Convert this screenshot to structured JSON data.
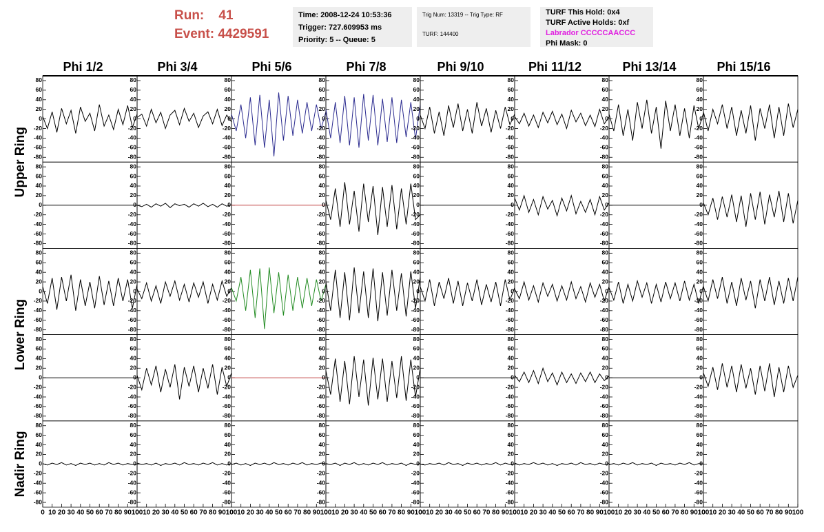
{
  "header": {
    "run_label": "Run:",
    "run": 41,
    "event_label": "Event:",
    "event": 4429591
  },
  "info": [
    [
      "Time: 2008-12-24 10:53:36",
      "Trigger: 727.609953 ms",
      "Priority: 5 -- Queue: 5"
    ],
    [
      "Trig Num: 13319 -- Trig Type: RF",
      "TURF: 144400"
    ],
    [
      "TURF This Hold: 0x4",
      "TURF Active Holds: 0xf",
      "Labrador CCCCCAACCC",
      "Phi Mask: 0"
    ]
  ],
  "chart_data": {
    "type": "line",
    "columns": [
      "Phi 1/2",
      "Phi 3/4",
      "Phi 5/6",
      "Phi 7/8",
      "Phi 9/10",
      "Phi 11/12",
      "Phi 13/14",
      "Phi 15/16"
    ],
    "ring_labels": [
      "Upper Ring",
      "Lower Ring",
      "Nadir Ring"
    ],
    "xlim": [
      0,
      100
    ],
    "ylim": [
      -90,
      90
    ],
    "xticks": [
      0,
      10,
      20,
      30,
      40,
      50,
      60,
      70,
      80,
      90,
      100
    ],
    "yticks": [
      -80,
      -60,
      -40,
      -20,
      0,
      20,
      40,
      60,
      80
    ],
    "x": [
      0,
      5,
      10,
      15,
      20,
      25,
      30,
      35,
      40,
      45,
      50,
      55,
      60,
      65,
      70,
      75,
      80,
      85,
      90,
      95,
      100
    ],
    "panels": [
      [
        {
          "color": "#000000",
          "values": [
            5,
            -20,
            15,
            -28,
            22,
            -10,
            18,
            -30,
            25,
            -5,
            12,
            -25,
            30,
            -15,
            8,
            -22,
            20,
            -12,
            28,
            -18,
            10
          ]
        },
        {
          "color": "#000000",
          "values": [
            3,
            10,
            -15,
            20,
            -8,
            14,
            -20,
            8,
            18,
            -12,
            22,
            -5,
            12,
            -18,
            6,
            15,
            -10,
            20,
            -14,
            8,
            -6
          ]
        },
        {
          "color": "#2b2b8f",
          "values": [
            10,
            -25,
            30,
            -40,
            45,
            -55,
            50,
            -60,
            40,
            -78,
            55,
            -45,
            48,
            -35,
            40,
            -30,
            35,
            -25,
            30,
            -20,
            15
          ]
        },
        {
          "color": "#2b2b8f",
          "values": [
            20,
            -40,
            35,
            -50,
            48,
            -55,
            45,
            -60,
            52,
            -45,
            50,
            -55,
            42,
            -48,
            45,
            -50,
            40,
            -38,
            35,
            -42,
            30
          ]
        },
        {
          "color": "#000000",
          "values": [
            8,
            -20,
            25,
            -30,
            15,
            -35,
            28,
            -18,
            32,
            -25,
            20,
            -30,
            35,
            -15,
            22,
            -28,
            18,
            -20,
            25,
            -12,
            10
          ]
        },
        {
          "color": "#000000",
          "values": [
            5,
            -10,
            12,
            -15,
            8,
            -18,
            14,
            -8,
            16,
            -12,
            10,
            -20,
            18,
            -6,
            12,
            -14,
            8,
            -16,
            20,
            -10,
            4
          ]
        },
        {
          "color": "#000000",
          "values": [
            10,
            -25,
            30,
            -35,
            20,
            -45,
            35,
            -20,
            40,
            -30,
            25,
            -62,
            38,
            -25,
            30,
            -35,
            22,
            -40,
            28,
            -20,
            12
          ]
        },
        {
          "color": "#000000",
          "values": [
            15,
            -25,
            20,
            -10,
            30,
            -20,
            25,
            -35,
            18,
            -30,
            28,
            -45,
            22,
            -20,
            30,
            -40,
            25,
            -35,
            32,
            -18,
            20
          ]
        }
      ],
      [
        {
          "color": "#000000",
          "values": [
            0,
            0,
            0,
            0,
            0,
            0,
            0,
            0,
            0,
            0,
            0,
            0,
            0,
            0,
            0,
            0,
            0,
            0,
            0,
            0,
            0
          ]
        },
        {
          "color": "#000000",
          "values": [
            0,
            -3,
            2,
            -4,
            3,
            -2,
            4,
            -5,
            3,
            -1,
            2,
            -4,
            3,
            -2,
            4,
            -3,
            2,
            -4,
            3,
            -2,
            1
          ]
        },
        {
          "color": "#c04040",
          "values": [
            0,
            0,
            0,
            0,
            0,
            0,
            0,
            0,
            0,
            0,
            0,
            0,
            0,
            0,
            0,
            0,
            0,
            0,
            0,
            0,
            0
          ]
        },
        {
          "color": "#000000",
          "values": [
            10,
            -30,
            35,
            -45,
            48,
            -40,
            30,
            -55,
            45,
            -35,
            40,
            -62,
            38,
            -45,
            42,
            -50,
            35,
            -40,
            45,
            -30,
            -20
          ]
        },
        {
          "color": "#000000",
          "values": [
            0,
            0,
            0,
            0,
            0,
            0,
            0,
            0,
            0,
            0,
            0,
            0,
            0,
            0,
            0,
            0,
            0,
            0,
            0,
            0,
            0
          ]
        },
        {
          "color": "#000000",
          "values": [
            15,
            -10,
            20,
            -15,
            12,
            -20,
            18,
            -8,
            10,
            -22,
            15,
            -12,
            20,
            -18,
            8,
            -15,
            12,
            -20,
            18,
            -10,
            5
          ]
        },
        {
          "color": "#000000",
          "values": [
            0,
            0,
            0,
            0,
            0,
            0,
            0,
            0,
            0,
            0,
            0,
            0,
            0,
            0,
            0,
            0,
            0,
            0,
            0,
            0,
            0
          ]
        },
        {
          "color": "#000000",
          "values": [
            5,
            -20,
            15,
            -30,
            18,
            -25,
            22,
            -35,
            20,
            -45,
            25,
            -30,
            28,
            -40,
            22,
            -25,
            30,
            -35,
            25,
            -38,
            10
          ]
        }
      ],
      [
        {
          "color": "#000000",
          "values": [
            10,
            -25,
            28,
            -38,
            30,
            -20,
            35,
            -40,
            25,
            -30,
            20,
            -35,
            32,
            -28,
            22,
            -30,
            28,
            -20,
            25,
            -35,
            15
          ]
        },
        {
          "color": "#000000",
          "values": [
            5,
            -15,
            18,
            -20,
            12,
            -25,
            20,
            -10,
            22,
            -18,
            15,
            -22,
            18,
            -12,
            20,
            -25,
            15,
            -18,
            22,
            -10,
            8
          ]
        },
        {
          "color": "#228b22",
          "values": [
            8,
            -20,
            30,
            -40,
            45,
            -55,
            48,
            -78,
            50,
            -45,
            40,
            -50,
            35,
            -40,
            30,
            -35,
            28,
            -30,
            25,
            -20,
            15
          ]
        },
        {
          "color": "#000000",
          "values": [
            20,
            -40,
            45,
            -55,
            40,
            -60,
            50,
            -45,
            42,
            -55,
            48,
            -62,
            40,
            -50,
            45,
            -40,
            38,
            -52,
            42,
            -35,
            30
          ]
        },
        {
          "color": "#000000",
          "values": [
            10,
            -20,
            25,
            -30,
            20,
            -15,
            28,
            -25,
            22,
            -30,
            18,
            -20,
            25,
            -28,
            15,
            -22,
            20,
            -30,
            25,
            -18,
            8
          ]
        },
        {
          "color": "#000000",
          "values": [
            5,
            -15,
            20,
            -18,
            12,
            -22,
            18,
            -10,
            15,
            -20,
            12,
            -18,
            20,
            -15,
            10,
            -22,
            18,
            -12,
            15,
            -20,
            10
          ]
        },
        {
          "color": "#000000",
          "values": [
            8,
            -18,
            20,
            -25,
            15,
            -20,
            22,
            -12,
            18,
            -25,
            15,
            -22,
            20,
            -15,
            18,
            -20,
            22,
            -18,
            15,
            -25,
            12
          ]
        },
        {
          "color": "#000000",
          "values": [
            10,
            -20,
            25,
            -15,
            30,
            -25,
            20,
            -30,
            28,
            -18,
            22,
            -35,
            25,
            -20,
            30,
            -28,
            22,
            -25,
            28,
            -20,
            30
          ]
        }
      ],
      [
        {
          "color": "#000000",
          "values": [
            0,
            0,
            0,
            0,
            0,
            0,
            0,
            0,
            0,
            0,
            0,
            0,
            0,
            0,
            0,
            0,
            0,
            0,
            0,
            0,
            0
          ]
        },
        {
          "color": "#000000",
          "values": [
            5,
            -25,
            20,
            -15,
            25,
            -30,
            18,
            -20,
            28,
            -45,
            22,
            -18,
            25,
            -30,
            20,
            -22,
            28,
            -35,
            22,
            -18,
            10
          ]
        },
        {
          "color": "#c04040",
          "values": [
            0,
            0,
            0,
            0,
            0,
            0,
            0,
            0,
            0,
            0,
            0,
            0,
            0,
            0,
            0,
            0,
            0,
            0,
            0,
            0,
            0
          ]
        },
        {
          "color": "#000000",
          "values": [
            15,
            -35,
            40,
            -50,
            35,
            -55,
            45,
            -40,
            38,
            -58,
            42,
            -45,
            40,
            -50,
            35,
            -42,
            45,
            -48,
            38,
            -40,
            20
          ]
        },
        {
          "color": "#000000",
          "values": [
            0,
            0,
            0,
            0,
            0,
            0,
            0,
            0,
            0,
            0,
            0,
            0,
            0,
            0,
            0,
            0,
            0,
            0,
            0,
            0,
            0
          ]
        },
        {
          "color": "#000000",
          "values": [
            5,
            -8,
            12,
            -10,
            15,
            -12,
            20,
            -8,
            10,
            -15,
            12,
            -10,
            8,
            -12,
            10,
            -8,
            12,
            -10,
            8,
            -6,
            4
          ]
        },
        {
          "color": "#000000",
          "values": [
            0,
            0,
            0,
            0,
            0,
            0,
            0,
            0,
            0,
            0,
            0,
            0,
            0,
            0,
            0,
            0,
            0,
            0,
            0,
            0,
            0
          ]
        },
        {
          "color": "#000000",
          "values": [
            10,
            -18,
            22,
            -25,
            30,
            -20,
            25,
            -30,
            28,
            -22,
            20,
            -35,
            25,
            -28,
            30,
            -40,
            22,
            -30,
            25,
            -20,
            5
          ]
        }
      ],
      [
        {
          "color": "#000000",
          "values": [
            1,
            -2,
            2,
            -1,
            3,
            -2,
            1,
            -3,
            2,
            -1,
            2,
            -2,
            1,
            -2,
            3,
            -1,
            2,
            -2,
            1,
            -1,
            0
          ]
        },
        {
          "color": "#000000",
          "values": [
            2,
            -1,
            1,
            -2,
            2,
            -3,
            1,
            -1,
            2,
            -2,
            3,
            -1,
            1,
            -2,
            2,
            -1,
            3,
            -2,
            1,
            -2,
            1
          ]
        },
        {
          "color": "#000000",
          "values": [
            -1,
            2,
            -2,
            1,
            -3,
            2,
            -1,
            2,
            -2,
            3,
            -1,
            1,
            -2,
            2,
            -1,
            3,
            -2,
            1,
            -1,
            2,
            0
          ]
        },
        {
          "color": "#000000",
          "values": [
            1,
            -1,
            2,
            -3,
            2,
            -1,
            3,
            -2,
            1,
            -2,
            2,
            -1,
            3,
            -2,
            1,
            -1,
            2,
            -3,
            2,
            -1,
            1
          ]
        },
        {
          "color": "#000000",
          "values": [
            0,
            -2,
            1,
            -1,
            2,
            -2,
            3,
            -1,
            1,
            -3,
            2,
            -1,
            2,
            -2,
            1,
            -1,
            3,
            -2,
            2,
            -1,
            0
          ]
        },
        {
          "color": "#000000",
          "values": [
            2,
            -2,
            1,
            -1,
            3,
            -1,
            2,
            -2,
            1,
            -3,
            1,
            -1,
            2,
            -2,
            3,
            -1,
            1,
            -2,
            2,
            -1,
            1
          ]
        },
        {
          "color": "#000000",
          "values": [
            -1,
            1,
            -2,
            2,
            -1,
            3,
            -2,
            1,
            -1,
            2,
            -3,
            2,
            -1,
            1,
            -2,
            2,
            -1,
            3,
            -2,
            1,
            0
          ]
        },
        {
          "color": "#000000",
          "values": [
            null,
            null,
            null,
            null,
            null,
            null,
            null,
            null,
            null,
            null,
            null,
            null,
            null,
            null,
            null,
            null,
            null,
            null,
            null,
            null,
            null
          ]
        }
      ]
    ]
  }
}
